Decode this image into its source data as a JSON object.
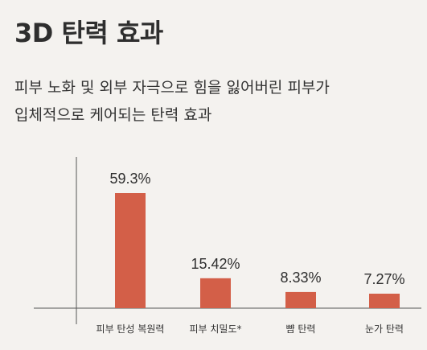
{
  "header": {
    "title": "3D 탄력 효과"
  },
  "description": {
    "lines": [
      "피부 노화 및 외부 자극으로 힘을 잃어버린 피부가",
      "입체적으로 케어되는 탄력 효과"
    ]
  },
  "chart_data": {
    "type": "bar",
    "categories": [
      "피부 탄성 복원력",
      "피부 치밀도*",
      "뺨 탄력",
      "눈가 탄력"
    ],
    "values": [
      59.3,
      15.42,
      8.33,
      7.27
    ],
    "value_labels": [
      "59.3%",
      "15.42%",
      "8.33%",
      "7.27%"
    ],
    "ylim": [
      0,
      70
    ],
    "grid": false,
    "bar_color": "#d35f48",
    "axis_color": "#555555"
  }
}
